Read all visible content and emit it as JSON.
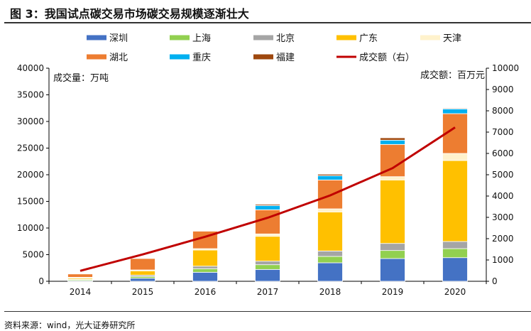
{
  "title": "图 3：我国试点碳交易市场碳交易规模逐渐壮大",
  "source": "资料来源：wind，光大证券研究所",
  "chart_data": {
    "type": "bar",
    "stacked": true,
    "categories": [
      "2014",
      "2015",
      "2016",
      "2017",
      "2018",
      "2019",
      "2020"
    ],
    "ylabel": "成交量：万吨",
    "y2label": "成交额：百万元",
    "ylim": [
      0,
      40000
    ],
    "y2lim": [
      0,
      10000
    ],
    "yticks": [
      0,
      5000,
      10000,
      15000,
      20000,
      25000,
      30000,
      35000,
      40000
    ],
    "y2ticks": [
      0,
      1000,
      2000,
      3000,
      4000,
      5000,
      6000,
      7000,
      8000,
      9000,
      10000
    ],
    "grid": false,
    "legend_position": "top",
    "series": [
      {
        "name": "深圳",
        "color": "#4472C4",
        "values": [
          130,
          570,
          1690,
          2220,
          3470,
          4270,
          4440
        ]
      },
      {
        "name": "上海",
        "color": "#92D050",
        "values": [
          180,
          320,
          670,
          890,
          1200,
          1510,
          1690
        ]
      },
      {
        "name": "北京",
        "color": "#A5A5A5",
        "values": [
          90,
          270,
          480,
          670,
          1020,
          1330,
          1340
        ]
      },
      {
        "name": "广东",
        "color": "#FFC000",
        "values": [
          220,
          800,
          3030,
          4660,
          7330,
          11910,
          15200
        ]
      },
      {
        "name": "天津",
        "color": "#FFF2CC",
        "values": [
          130,
          170,
          260,
          450,
          580,
          620,
          1330
        ]
      },
      {
        "name": "湖北",
        "color": "#ED7D31",
        "values": [
          620,
          2140,
          3290,
          4530,
          5420,
          6050,
          7470
        ]
      },
      {
        "name": "重庆",
        "color": "#00B0F0",
        "values": [
          0,
          0,
          90,
          800,
          800,
          800,
          890
        ]
      },
      {
        "name": "福建",
        "color": "#9E480E",
        "values": [
          0,
          0,
          0,
          220,
          270,
          440,
          130
        ]
      }
    ],
    "line_series": {
      "name": "成交额（右）",
      "color": "#C00000",
      "axis": "right",
      "values": [
        490,
        1260,
        2090,
        2980,
        4030,
        5310,
        7220
      ]
    }
  }
}
